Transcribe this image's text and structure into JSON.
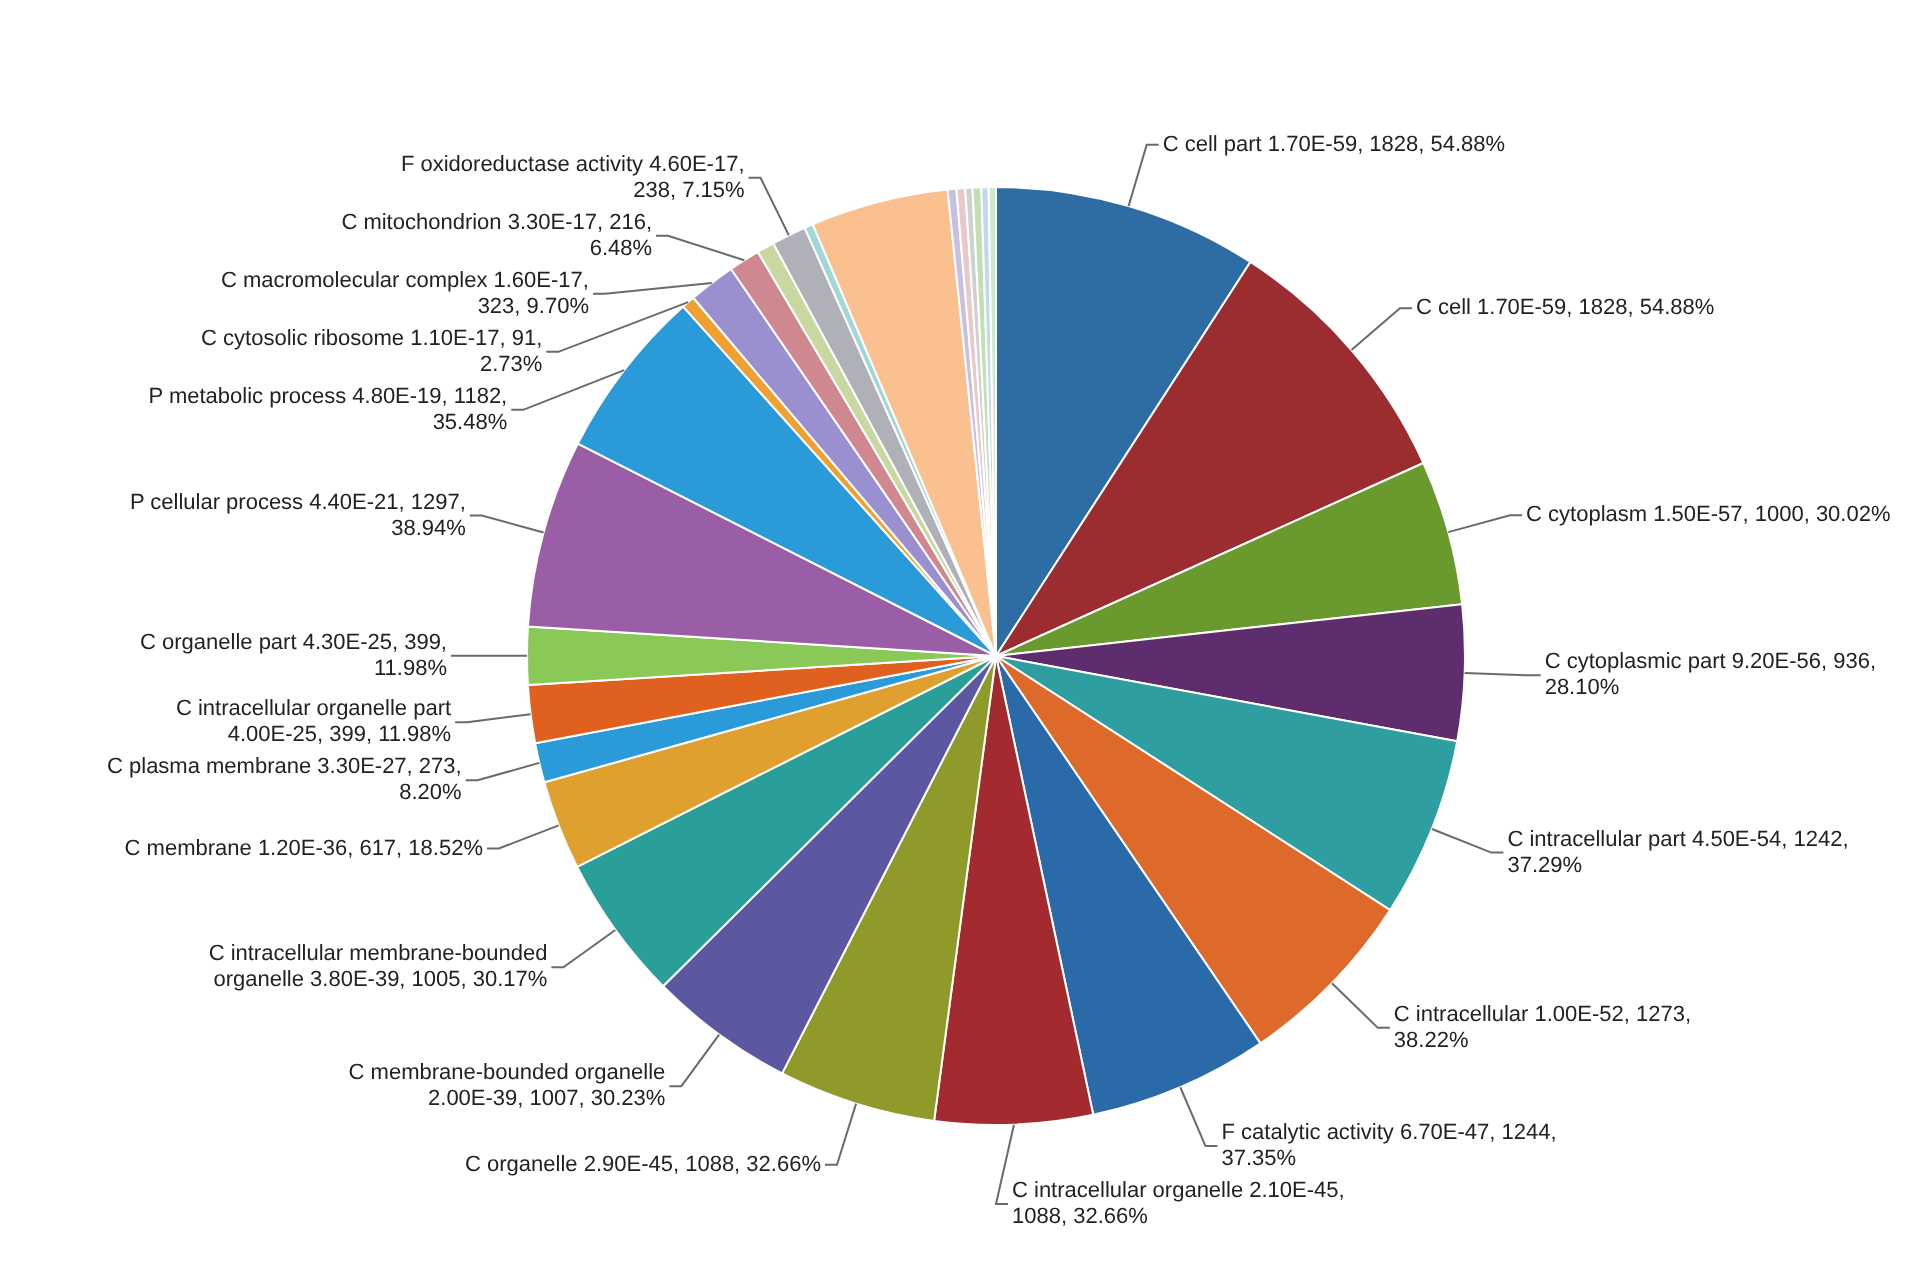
{
  "chart_data": {
    "type": "pie",
    "categories": [
      "C cell part 1.70E-59, 1828, 54.88%",
      "C cell 1.70E-59, 1828, 54.88%",
      "C cytoplasm 1.50E-57, 1000, 30.02%",
      "C cytoplasmic part 9.20E-56, 936, 28.10%",
      "C intracellular part 4.50E-54, 1242, 37.29%",
      "C intracellular 1.00E-52, 1273, 38.22%",
      "F catalytic activity 6.70E-47, 1244, 37.35%",
      "C intracellular organelle 2.10E-45, 1088, 32.66%",
      "C organelle 2.90E-45, 1088, 32.66%",
      "C membrane-bounded organelle 2.00E-39, 1007, 30.23%",
      "C intracellular membrane-bounded organelle 3.80E-39, 1005, 30.17%",
      "C membrane 1.20E-36, 617, 18.52%",
      "C plasma membrane 3.30E-27, 273, 8.20%",
      "C intracellular organelle part 4.00E-25, 399, 11.98%",
      "C organelle part 4.30E-25, 399, 11.98%",
      "P cellular process 4.40E-21, 1297, 38.94%",
      "P metabolic process 4.80E-19, 1182, 35.48%",
      "C cytosolic ribosome 1.10E-17, 91, 2.73%",
      "C macromolecular complex 1.60E-17, 323, 9.70%",
      "C mitochondrion 3.30E-17, 216, 6.48%",
      null,
      "F oxidoreductase activity 4.60E-17, 238, 7.15%",
      null,
      null,
      null,
      null,
      null,
      null,
      null,
      null
    ],
    "values": [
      1828,
      1828,
      1000,
      936,
      1242,
      1273,
      1244,
      1088,
      1088,
      1007,
      1005,
      617,
      273,
      399,
      399,
      1297,
      1182,
      91,
      323,
      216,
      120,
      238,
      60,
      950,
      60,
      60,
      50,
      60,
      50,
      50
    ],
    "colors": [
      "#2e6ca4",
      "#9b2d30",
      "#6a9a2e",
      "#5e2d6e",
      "#2e9ea0",
      "#dd6a2a",
      "#2a6aa8",
      "#a32a2e",
      "#8f9a2a",
      "#5b57a0",
      "#2a9f9a",
      "#e0a030",
      "#2a9ad8",
      "#e06020",
      "#8ac858",
      "#9a5ea6",
      "#2a9ad8",
      "#f0a030",
      "#9a90d0",
      "#d08890",
      "#c8d8a0",
      "#b0b0b8",
      "#a0d8d8",
      "#fac090",
      "#c8c0e0",
      "#e8c8c8",
      "#d0d0d0",
      "#c0e0b0",
      "#c0d8f0",
      "#d0e8d0"
    ]
  }
}
